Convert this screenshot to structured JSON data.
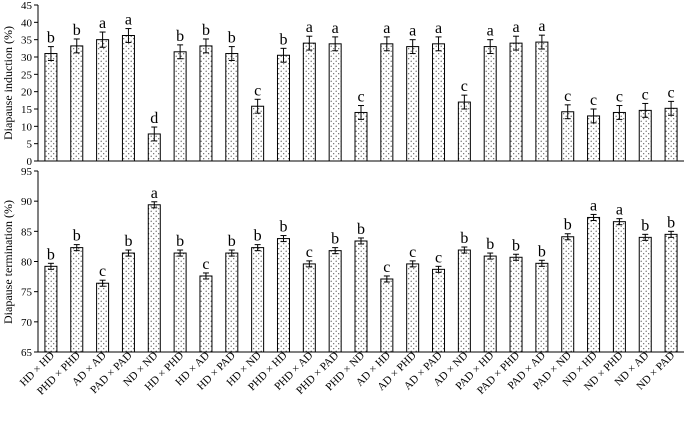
{
  "chart_data": [
    {
      "type": "bar",
      "ylabel": "Diapause induction (%)",
      "ylim": [
        0,
        45
      ],
      "ytick_step": 5,
      "grid": false,
      "values": [
        31,
        33.2,
        35,
        36.2,
        7.8,
        31.5,
        33.2,
        31,
        15.8,
        30.5,
        34,
        33.8,
        14,
        33.8,
        33,
        33.8,
        17,
        33,
        34,
        34.3,
        14.2,
        13,
        14,
        14.6,
        15.2
      ],
      "errors": [
        2,
        2,
        2.2,
        2,
        2,
        2,
        2,
        2,
        2,
        2,
        2,
        2,
        2,
        2,
        2,
        2,
        2,
        2,
        2,
        2,
        2,
        2,
        2,
        2,
        2
      ],
      "letters": [
        "b",
        "b",
        "a",
        "a",
        "d",
        "b",
        "b",
        "b",
        "c",
        "b",
        "a",
        "a",
        "c",
        "a",
        "a",
        "a",
        "c",
        "a",
        "a",
        "a",
        "c",
        "c",
        "c",
        "c",
        "c"
      ]
    },
    {
      "type": "bar",
      "ylabel": "Diapause termination (%)",
      "ylim": [
        65,
        95
      ],
      "ytick_step": 5,
      "grid": false,
      "categories": [
        "HD × HD",
        "PHD × PHD",
        "AD × AD",
        "PAD × PAD",
        "ND × ND",
        "HD × PHD",
        "HD × AD",
        "HD × PAD",
        "HD × ND",
        "PHD × HD",
        "PHD × AD",
        "PHD × PAD",
        "PHD × ND",
        "AD × HD",
        "AD × PHD",
        "AD × PAD",
        "AD × ND",
        "PAD × HD",
        "PAD × PHD",
        "PAD × AD",
        "PAD × ND",
        "ND × HD",
        "ND × PHD",
        "ND × AD",
        "ND × PAD"
      ],
      "values": [
        79.2,
        82.3,
        76.4,
        81.4,
        89.4,
        81.4,
        77.6,
        81.4,
        82.3,
        83.8,
        79.6,
        81.8,
        83.4,
        77.1,
        79.6,
        78.7,
        81.9,
        80.9,
        80.7,
        79.7,
        84.1,
        87.3,
        86.6,
        84,
        84.5
      ],
      "errors": [
        0.5,
        0.5,
        0.5,
        0.5,
        0.5,
        0.5,
        0.5,
        0.5,
        0.5,
        0.5,
        0.5,
        0.5,
        0.5,
        0.5,
        0.5,
        0.5,
        0.5,
        0.5,
        0.5,
        0.5,
        0.5,
        0.5,
        0.5,
        0.5,
        0.5
      ],
      "letters": [
        "b",
        "b",
        "c",
        "b",
        "a",
        "b",
        "c",
        "b",
        "b",
        "b",
        "c",
        "b",
        "b",
        "c",
        "c",
        "c",
        "b",
        "b",
        "b",
        "b",
        "b",
        "a",
        "a",
        "b",
        "b"
      ]
    }
  ]
}
